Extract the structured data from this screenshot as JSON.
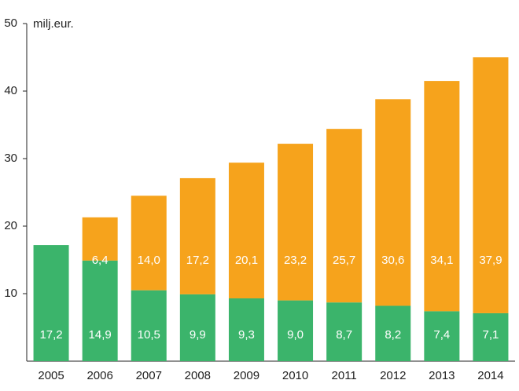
{
  "chart_data": {
    "type": "stacked-bar",
    "y_label": "milj.eur.",
    "categories": [
      "2005",
      "2006",
      "2007",
      "2008",
      "2009",
      "2010",
      "2011",
      "2012",
      "2013",
      "2014"
    ],
    "series": [
      {
        "color": "#3bb46b",
        "values": [
          17.2,
          14.9,
          10.5,
          9.9,
          9.3,
          9.0,
          8.7,
          8.2,
          7.4,
          7.1
        ],
        "value_labels": [
          "17,2",
          "14,9",
          "10,5",
          "9,9",
          "9,3",
          "9,0",
          "8,7",
          "8,2",
          "7,4",
          "7,1"
        ]
      },
      {
        "color": "#f6a31c",
        "values": [
          null,
          6.4,
          14.0,
          17.2,
          20.1,
          23.2,
          25.7,
          30.6,
          34.1,
          37.9
        ],
        "value_labels": [
          null,
          "6,4",
          "14,0",
          "17,2",
          "20,1",
          "23,2",
          "25,7",
          "30,6",
          "34,1",
          "37,9"
        ]
      }
    ],
    "ylim": [
      0,
      50
    ],
    "yticks": [
      10,
      20,
      30,
      40,
      50
    ]
  }
}
